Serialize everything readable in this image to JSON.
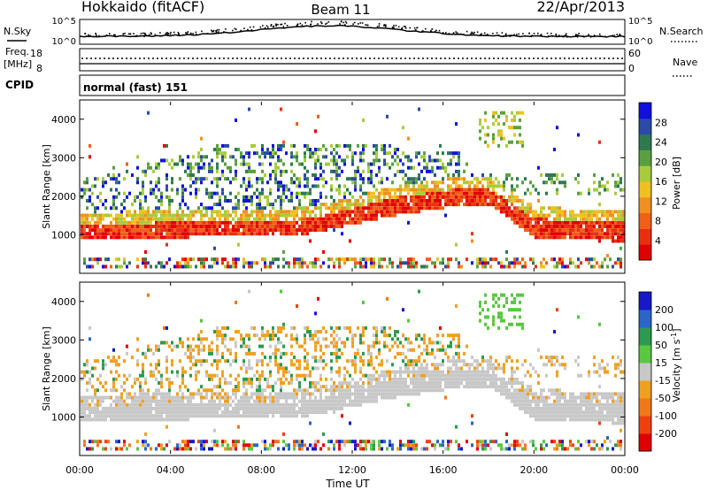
{
  "header": {
    "station": "Hokkaido (fitACF)",
    "beam": "Beam 11",
    "date": "22/Apr/2013"
  },
  "status": {
    "nsky_label": "N.Sky",
    "nsky_ticks": [
      "10^5",
      "10^0"
    ],
    "nsearch_label": "N.Search",
    "nsearch_ticks": [
      "10^5",
      "10^0"
    ],
    "freq_label_1": "Freq.",
    "freq_label_2": "[MHz]",
    "freq_ticks": [
      "18",
      "8"
    ],
    "nave_label": "Nave",
    "nave_ticks": [
      "60",
      "0"
    ],
    "cpid_label": "CPID",
    "cpid_value": "normal (fast) 151"
  },
  "chart_data": [
    {
      "type": "heatmap",
      "title": "",
      "ylabel": "Slant Range [km]",
      "yticks": [
        "1000",
        "2000",
        "3000",
        "4000"
      ],
      "ylim": [
        0,
        4500
      ],
      "xlim_hours": [
        0,
        24
      ],
      "colorbar": {
        "label": "Power [dB]",
        "ticks": [
          "4",
          "8",
          "12",
          "16",
          "20",
          "24",
          "28"
        ],
        "colors": [
          "#1010e0",
          "#2c4aa8",
          "#2e7a50",
          "#5aa040",
          "#a8cc3c",
          "#f0c020",
          "#f09020",
          "#f06018",
          "#e83010",
          "#e00000"
        ]
      },
      "main_echo_band_km": [
        {
          "hour": 0,
          "lo": 850,
          "hi": 1250
        },
        {
          "hour": 4,
          "lo": 900,
          "hi": 1300
        },
        {
          "hour": 8,
          "lo": 950,
          "hi": 1300
        },
        {
          "hour": 10,
          "lo": 1000,
          "hi": 1400
        },
        {
          "hour": 14,
          "lo": 1500,
          "hi": 1950
        },
        {
          "hour": 17,
          "lo": 1750,
          "hi": 2200
        },
        {
          "hour": 18,
          "lo": 1750,
          "hi": 2150
        },
        {
          "hour": 20,
          "lo": 900,
          "hi": 1400
        },
        {
          "hour": 24,
          "lo": 800,
          "hi": 1300
        }
      ]
    },
    {
      "type": "heatmap",
      "title": "",
      "ylabel": "Slant Range [km]",
      "yticks": [
        "1000",
        "2000",
        "3000",
        "4000"
      ],
      "ylim": [
        0,
        4500
      ],
      "xlim_hours": [
        0,
        24
      ],
      "colorbar": {
        "label": "Velocity [m s",
        "label_sup": "-1",
        "label_end": "]",
        "ticks": [
          "200",
          "100",
          "50",
          "15",
          "-15",
          "-50",
          "-100",
          "-200"
        ],
        "colors": [
          "#1818c8",
          "#2a66c8",
          "#2c9a50",
          "#58c840",
          "#c8c8c8",
          "#f0a020",
          "#f07818",
          "#f04010",
          "#e00000"
        ]
      }
    }
  ],
  "xaxis": {
    "label": "Time UT",
    "ticks": [
      "00:00",
      "04:00",
      "08:00",
      "12:00",
      "16:00",
      "20:00",
      "00:00"
    ]
  }
}
